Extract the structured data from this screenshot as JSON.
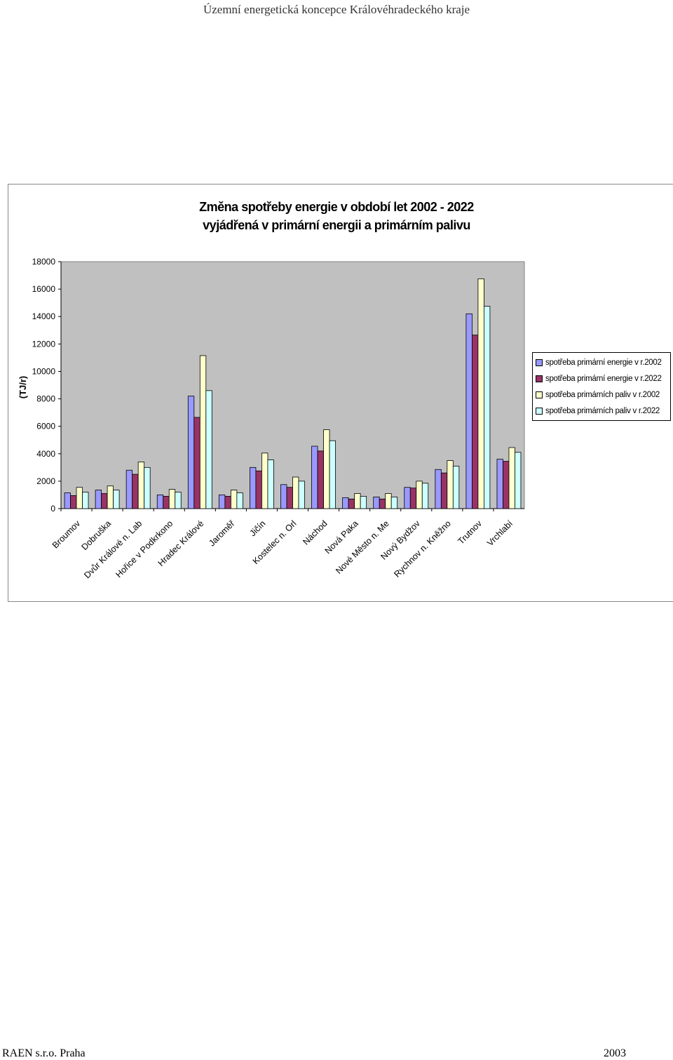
{
  "header": {
    "title": "Územní energetická koncepce Královéhradeckého kraje"
  },
  "footer": {
    "left": "RAEN s.r.o. Praha",
    "right": "2003"
  },
  "chart_data": {
    "type": "bar",
    "title_lines": [
      "Změna spotřeby energie v období let 2002 - 2022",
      "vyjádřená v primární energii a primárním palivu"
    ],
    "ylabel": "(TJ/r)",
    "ylim": [
      0,
      18000
    ],
    "yticks": [
      0,
      2000,
      4000,
      6000,
      8000,
      10000,
      12000,
      14000,
      16000,
      18000
    ],
    "grid": false,
    "legend_position": "right",
    "categories": [
      "Broumov",
      "Dobruška",
      "Dvůr Králové n. Lab",
      "Hořice v Podkrkono",
      "Hradec Králové",
      "Jaroměř",
      "Jičín",
      "Kostelec n. Orl",
      "Náchod",
      "Nová Paka",
      "Nové Město n. Me",
      "Nový Bydžov",
      "Rychnov n. Kněžno",
      "Trutnov",
      "Vrchlabí"
    ],
    "series": [
      {
        "name": "spotřeba primární energie v r.2002",
        "color": "#9999ff",
        "values": [
          1150,
          1350,
          2800,
          1000,
          8200,
          1000,
          3000,
          1750,
          4550,
          800,
          850,
          1550,
          2850,
          14200,
          3600
        ]
      },
      {
        "name": "spotřeba primární energie v r.2022",
        "color": "#993366",
        "values": [
          950,
          1100,
          2500,
          900,
          6650,
          900,
          2750,
          1550,
          4200,
          700,
          700,
          1500,
          2600,
          12650,
          3450
        ]
      },
      {
        "name": "spotřeba primárních paliv v r.2002",
        "color": "#ffffcc",
        "values": [
          1550,
          1650,
          3400,
          1400,
          11150,
          1350,
          4050,
          2300,
          5750,
          1100,
          1100,
          2000,
          3500,
          16750,
          4450
        ]
      },
      {
        "name": "spotřeba primárních paliv v r.2022",
        "color": "#ccffff",
        "values": [
          1200,
          1350,
          3000,
          1200,
          8600,
          1150,
          3550,
          2000,
          4950,
          900,
          850,
          1850,
          3100,
          14750,
          4100
        ]
      }
    ],
    "plot_background": "#c0c0c0"
  }
}
